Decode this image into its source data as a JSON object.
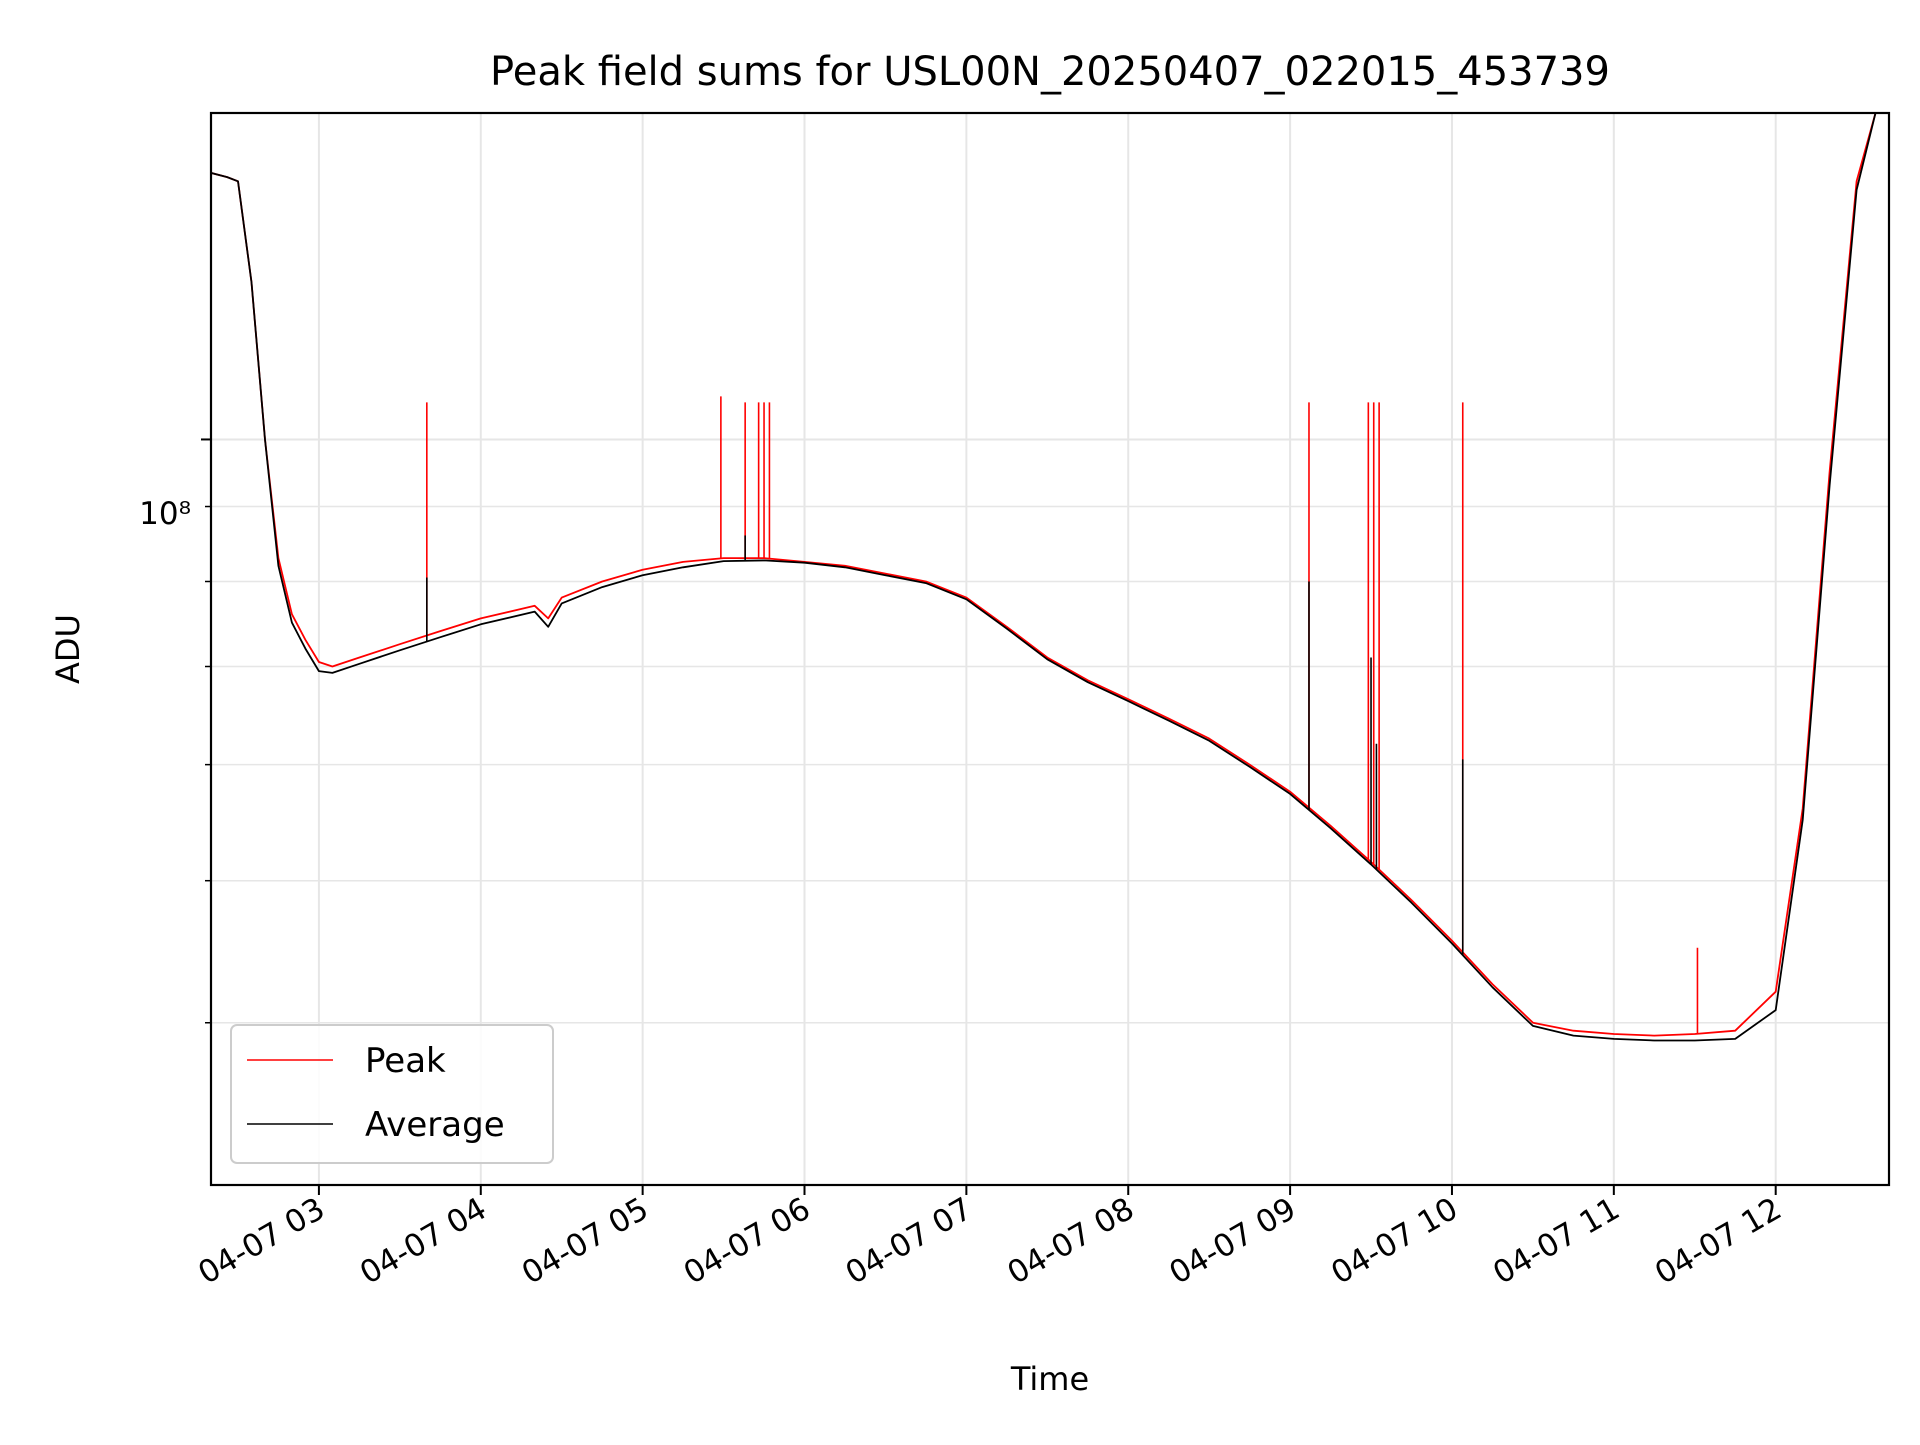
{
  "chart_data": {
    "type": "line",
    "title": "Peak field sums for USL00N_20250407_022015_453739",
    "xlabel": "Time",
    "ylabel": "ADU",
    "y_scale": "log",
    "y_tick_label_major": "10⁸",
    "ylim": [
      31000000,
      167000000
    ],
    "xlim": [
      "04-07 02:20",
      "04-07 12:42"
    ],
    "grid": true,
    "legend_position": "lower-left",
    "x_ticks": [
      "04-07 03",
      "04-07 04",
      "04-07 05",
      "04-07 06",
      "04-07 07",
      "04-07 08",
      "04-07 09",
      "04-07 10",
      "04-07 11",
      "04-07 12"
    ],
    "y_minor_ticks": [
      40000000,
      50000000,
      60000000,
      70000000,
      80000000,
      90000000,
      200000000
    ],
    "colors": {
      "peak": "#ff0000",
      "average": "#000000",
      "grid": "#e6e6e6"
    },
    "series": [
      {
        "name": "Peak",
        "x": [
          "04-07 02:20",
          "04-07 02:26",
          "04-07 02:30",
          "04-07 02:35",
          "04-07 02:40",
          "04-07 02:45",
          "04-07 02:50",
          "04-07 02:55",
          "04-07 03:00",
          "04-07 03:05",
          "04-07 03:15",
          "04-07 03:30",
          "04-07 03:45",
          "04-07 04:00",
          "04-07 04:20",
          "04-07 04:25",
          "04-07 04:30",
          "04-07 04:45",
          "04-07 05:00",
          "04-07 05:15",
          "04-07 05:30",
          "04-07 05:45",
          "04-07 06:00",
          "04-07 06:15",
          "04-07 06:30",
          "04-07 06:45",
          "04-07 07:00",
          "04-07 07:15",
          "04-07 07:30",
          "04-07 07:45",
          "04-07 08:00",
          "04-07 08:15",
          "04-07 08:30",
          "04-07 08:45",
          "04-07 09:00",
          "04-07 09:15",
          "04-07 09:30",
          "04-07 09:45",
          "04-07 10:00",
          "04-07 10:15",
          "04-07 10:30",
          "04-07 10:45",
          "04-07 11:00",
          "04-07 11:15",
          "04-07 11:30",
          "04-07 11:45",
          "04-07 12:00",
          "04-07 12:10",
          "04-07 12:20",
          "04-07 12:30",
          "04-07 12:37"
        ],
        "y": [
          152000000,
          151000000,
          150000000,
          128000000,
          100000000,
          83000000,
          76000000,
          73000000,
          70500000,
          70000000,
          71000000,
          72500000,
          74000000,
          75500000,
          77000000,
          75500000,
          78000000,
          80000000,
          81500000,
          82500000,
          83000000,
          83000000,
          82500000,
          82000000,
          81000000,
          80000000,
          78000000,
          74500000,
          71000000,
          68500000,
          66500000,
          64500000,
          62500000,
          60000000,
          57500000,
          54500000,
          51500000,
          48500000,
          45500000,
          42500000,
          40000000,
          39500000,
          39300000,
          39200000,
          39300000,
          39500000,
          42000000,
          56000000,
          95000000,
          150000000,
          167000000
        ],
        "spikes": [
          {
            "x": "04-07 03:40",
            "y": 106000000
          },
          {
            "x": "04-07 05:29",
            "y": 107000000
          },
          {
            "x": "04-07 05:38",
            "y": 106000000
          },
          {
            "x": "04-07 05:43",
            "y": 106000000
          },
          {
            "x": "04-07 05:45",
            "y": 106000000
          },
          {
            "x": "04-07 05:47",
            "y": 106000000
          },
          {
            "x": "04-07 09:07",
            "y": 106000000
          },
          {
            "x": "04-07 09:29",
            "y": 106000000
          },
          {
            "x": "04-07 09:31",
            "y": 106000000
          },
          {
            "x": "04-07 09:33",
            "y": 106000000
          },
          {
            "x": "04-07 10:04",
            "y": 106000000
          },
          {
            "x": "04-07 11:31",
            "y": 45000000
          }
        ]
      },
      {
        "name": "Average",
        "x": [
          "04-07 02:20",
          "04-07 02:26",
          "04-07 02:30",
          "04-07 02:35",
          "04-07 02:40",
          "04-07 02:45",
          "04-07 02:50",
          "04-07 02:55",
          "04-07 03:00",
          "04-07 03:05",
          "04-07 03:15",
          "04-07 03:30",
          "04-07 03:45",
          "04-07 04:00",
          "04-07 04:20",
          "04-07 04:25",
          "04-07 04:30",
          "04-07 04:45",
          "04-07 05:00",
          "04-07 05:15",
          "04-07 05:30",
          "04-07 05:45",
          "04-07 06:00",
          "04-07 06:15",
          "04-07 06:30",
          "04-07 06:45",
          "04-07 07:00",
          "04-07 07:15",
          "04-07 07:30",
          "04-07 07:45",
          "04-07 08:00",
          "04-07 08:15",
          "04-07 08:30",
          "04-07 08:45",
          "04-07 09:00",
          "04-07 09:15",
          "04-07 09:30",
          "04-07 09:45",
          "04-07 10:00",
          "04-07 10:15",
          "04-07 10:30",
          "04-07 10:45",
          "04-07 11:00",
          "04-07 11:15",
          "04-07 11:30",
          "04-07 11:45",
          "04-07 12:00",
          "04-07 12:10",
          "04-07 12:20",
          "04-07 12:30",
          "04-07 12:37"
        ],
        "y": [
          152000000,
          151000000,
          150000000,
          128000000,
          100000000,
          82000000,
          75000000,
          72000000,
          69500000,
          69300000,
          70300000,
          71800000,
          73300000,
          74800000,
          76300000,
          74500000,
          77300000,
          79300000,
          80800000,
          81800000,
          82600000,
          82700000,
          82400000,
          81800000,
          80800000,
          79800000,
          77800000,
          74300000,
          70800000,
          68300000,
          66300000,
          64300000,
          62300000,
          59800000,
          57300000,
          54300000,
          51300000,
          48300000,
          45300000,
          42300000,
          39800000,
          39200000,
          39000000,
          38900000,
          38900000,
          39000000,
          40800000,
          55000000,
          93000000,
          148000000,
          167000000
        ],
        "spikes": [
          {
            "x": "04-07 03:40",
            "y": 80500000
          },
          {
            "x": "04-07 05:38",
            "y": 86000000
          },
          {
            "x": "04-07 09:07",
            "y": 80000000
          },
          {
            "x": "04-07 09:30",
            "y": 71000000
          },
          {
            "x": "04-07 09:32",
            "y": 62000000
          },
          {
            "x": "04-07 10:04",
            "y": 60500000
          }
        ]
      }
    ]
  }
}
